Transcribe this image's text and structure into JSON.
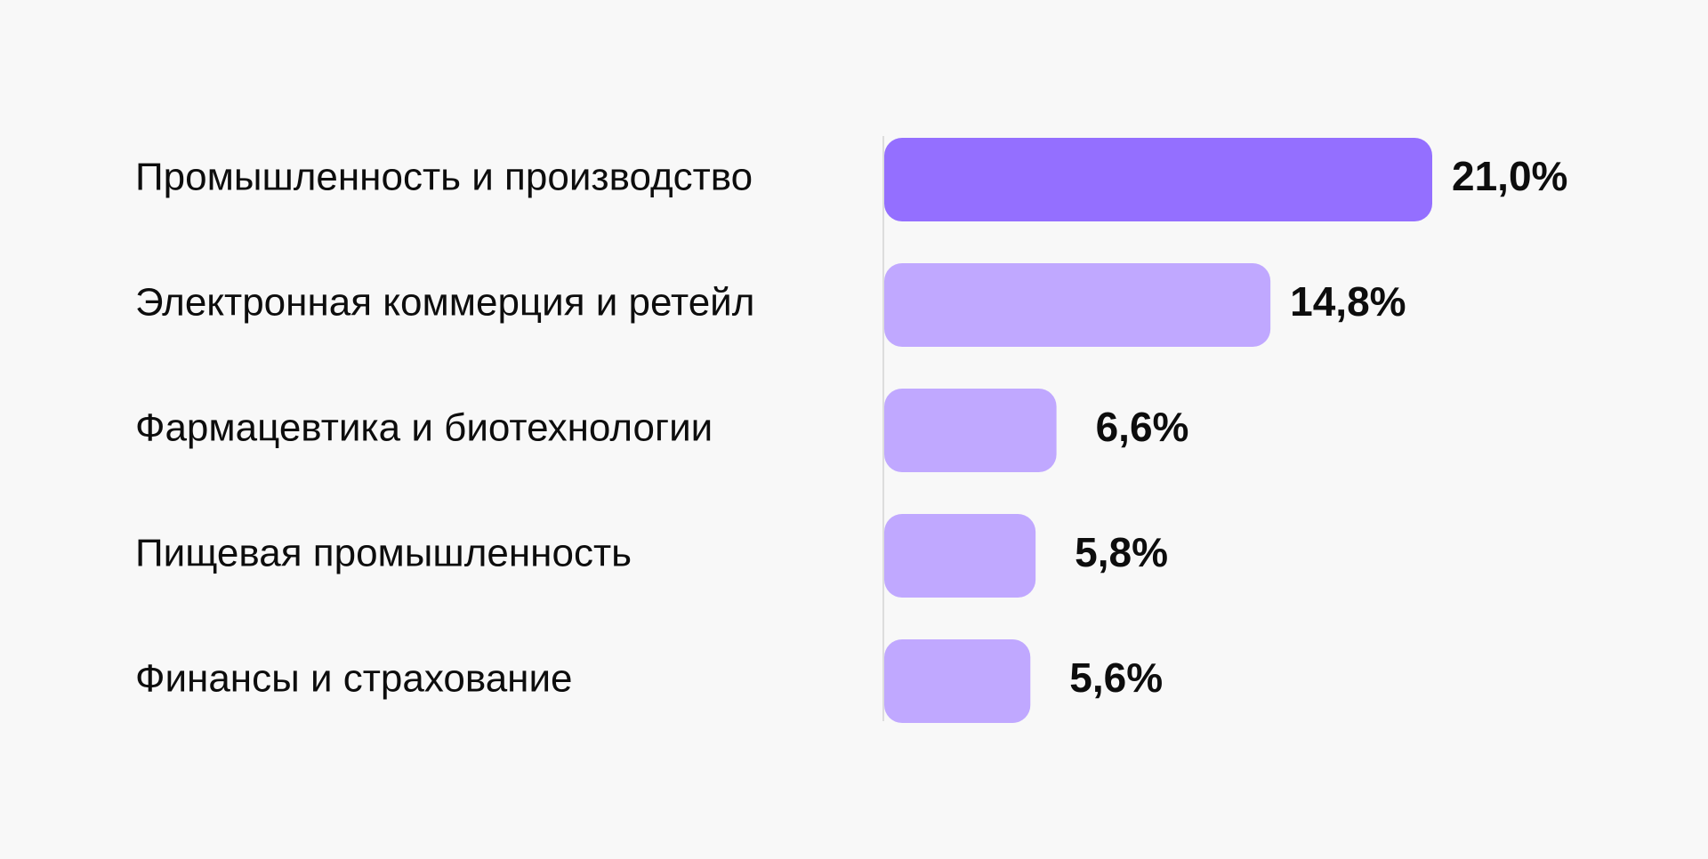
{
  "chart_data": {
    "type": "bar",
    "orientation": "horizontal",
    "title": "",
    "xlabel": "",
    "ylabel": "",
    "categories": [
      "Промышленность и производство",
      "Электронная коммерция и ретейл",
      "Фармацевтика и биотехнологии",
      "Пищевая промышленность",
      "Финансы и страхование"
    ],
    "values": [
      21.0,
      14.8,
      6.6,
      5.8,
      5.6
    ],
    "value_labels": [
      "21,0%",
      "14,8%",
      "6,6%",
      "5,8%",
      "5,6%"
    ],
    "xlim": [
      0,
      21.0
    ],
    "grid": false,
    "legend": "none",
    "colors": {
      "highlight": "#946fff",
      "default": "#c0a8ff",
      "axis": "#dddddd",
      "text": "#0d0d0d",
      "background": "#f8f8f8"
    }
  }
}
